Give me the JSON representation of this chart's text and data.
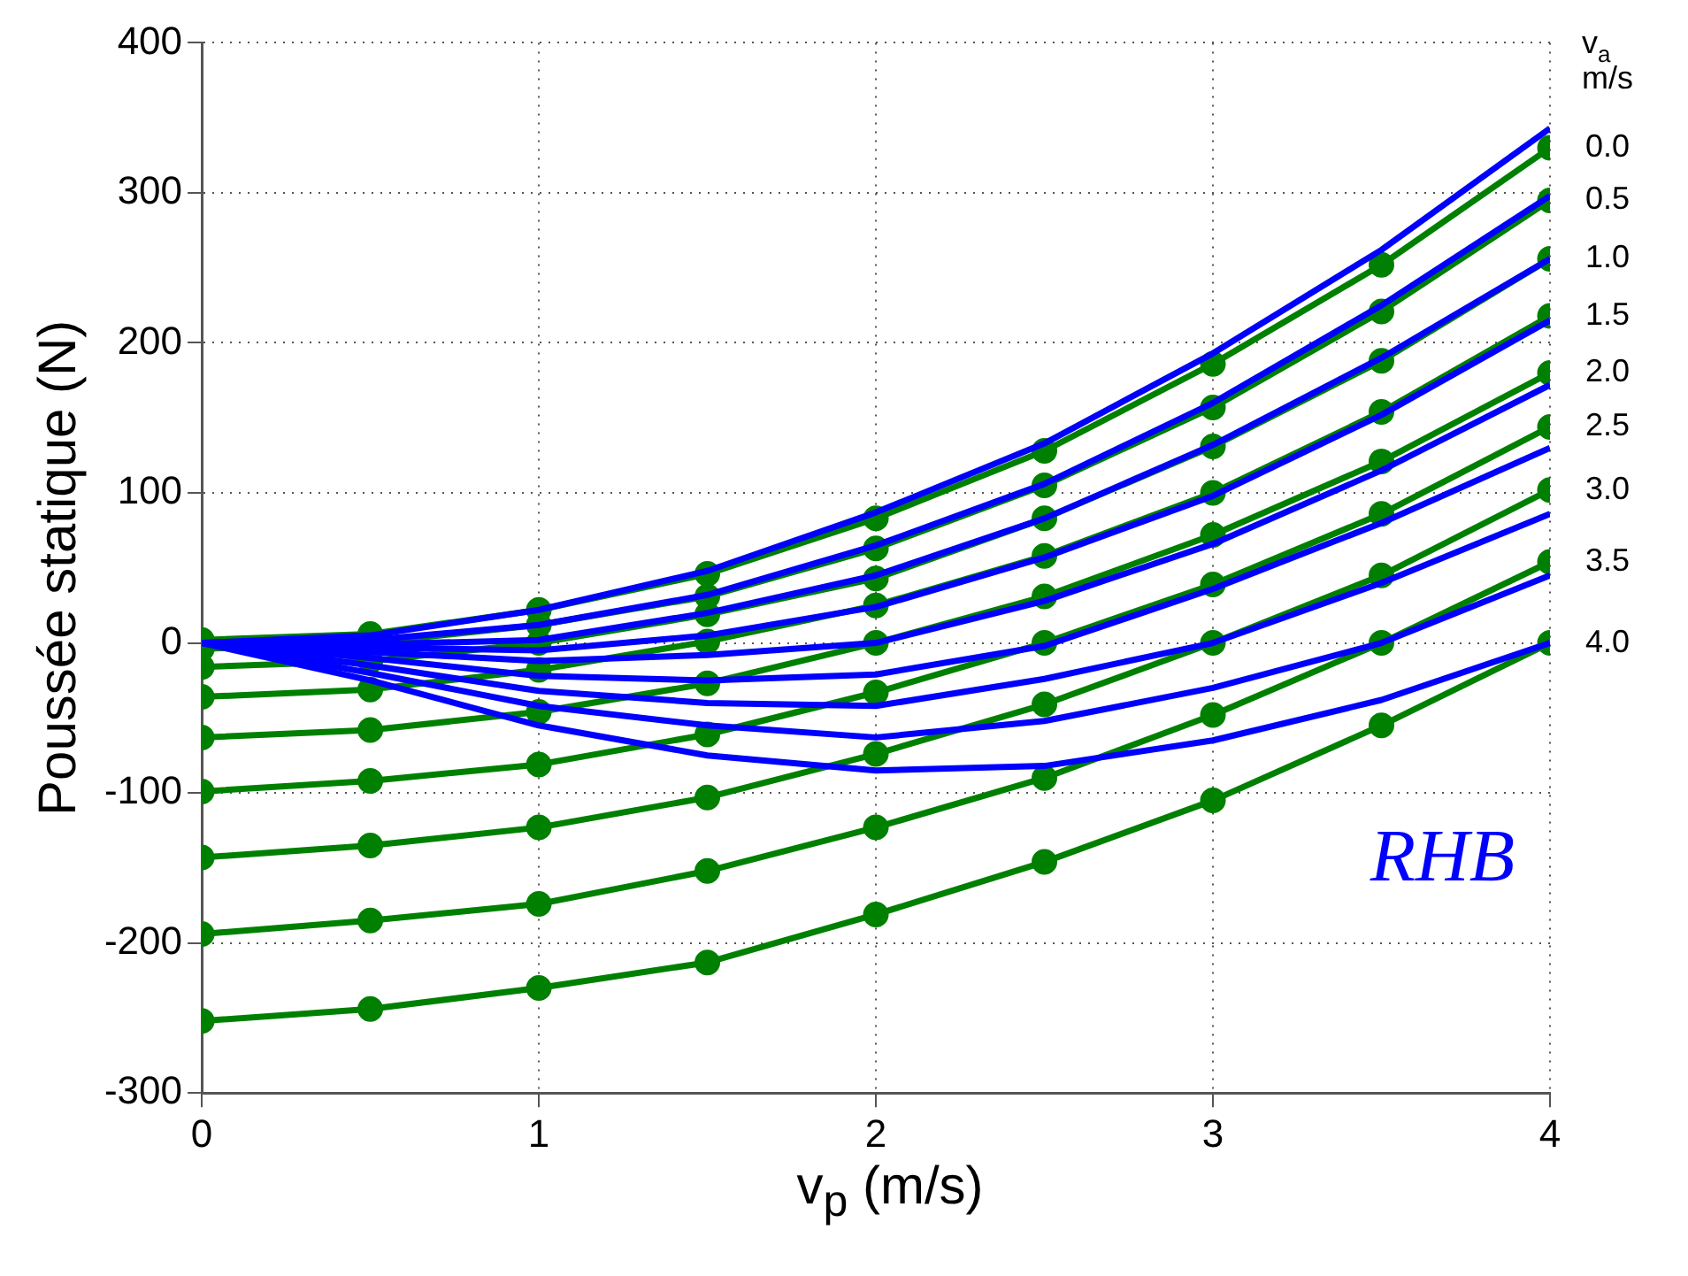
{
  "chart_data": {
    "type": "line",
    "ylabel": "Poussée statique (N)",
    "xlabel": "v$_{p}$ (m/s)",
    "x": [
      0,
      0.5,
      1,
      1.5,
      2,
      2.5,
      3,
      3.5,
      4
    ],
    "xlim": [
      0,
      4
    ],
    "xticks": [
      0,
      1,
      2,
      3,
      4
    ],
    "ylim": [
      -300,
      400
    ],
    "yticks": [
      -300,
      -200,
      -100,
      0,
      100,
      200,
      300,
      400
    ],
    "grid": true,
    "legend": false,
    "series": [
      {
        "color": "#0000ff",
        "marker": "none",
        "values": [
          0,
          5,
          22,
          48,
          87,
          133,
          193,
          262,
          343
        ]
      },
      {
        "color": "#0000ff",
        "marker": "none",
        "values": [
          0,
          2,
          12,
          32,
          65,
          106,
          160,
          225,
          298
        ]
      },
      {
        "color": "#0000ff",
        "marker": "none",
        "values": [
          0,
          -1,
          2,
          20,
          45,
          83,
          132,
          190,
          256
        ]
      },
      {
        "color": "#0000ff",
        "marker": "none",
        "values": [
          0,
          -3,
          -5,
          5,
          24,
          57,
          98,
          152,
          215
        ]
      },
      {
        "color": "#0000ff",
        "marker": "none",
        "values": [
          0,
          -6,
          -12,
          -8,
          0,
          28,
          66,
          115,
          172
        ]
      },
      {
        "color": "#0000ff",
        "marker": "none",
        "values": [
          0,
          -10,
          -22,
          -25,
          -21,
          -2,
          36,
          80,
          130
        ]
      },
      {
        "color": "#0000ff",
        "marker": "none",
        "values": [
          0,
          -15,
          -32,
          -40,
          -42,
          -24,
          0,
          40,
          86
        ]
      },
      {
        "color": "#0000ff",
        "marker": "none",
        "values": [
          0,
          -20,
          -42,
          -55,
          -63,
          -52,
          -30,
          0,
          45
        ]
      },
      {
        "color": "#0000ff",
        "marker": "none",
        "values": [
          0,
          -25,
          -55,
          -75,
          -85,
          -82,
          -65,
          -38,
          0
        ]
      },
      {
        "name": "0.0",
        "color": "#008000",
        "marker": "circle",
        "values": [
          2,
          6,
          22,
          46,
          83,
          128,
          186,
          252,
          330
        ]
      },
      {
        "name": "0.5",
        "color": "#008000",
        "marker": "circle",
        "values": [
          -4,
          0,
          12,
          31,
          63,
          105,
          157,
          221,
          295
        ]
      },
      {
        "name": "1.0",
        "color": "#008000",
        "marker": "circle",
        "values": [
          -16,
          -12,
          0,
          19,
          43,
          83,
          131,
          188,
          256
        ]
      },
      {
        "name": "1.5",
        "color": "#008000",
        "marker": "circle",
        "values": [
          -36,
          -31,
          -18,
          1,
          25,
          58,
          100,
          154,
          218
        ]
      },
      {
        "name": "2.0",
        "color": "#008000",
        "marker": "circle",
        "values": [
          -63,
          -58,
          -46,
          -27,
          0,
          31,
          72,
          121,
          180
        ]
      },
      {
        "name": "2.5",
        "color": "#008000",
        "marker": "circle",
        "values": [
          -99,
          -92,
          -81,
          -61,
          -33,
          0,
          39,
          86,
          144
        ]
      },
      {
        "name": "3.0",
        "color": "#008000",
        "marker": "circle",
        "values": [
          -143,
          -135,
          -123,
          -103,
          -74,
          -41,
          0,
          45,
          102
        ]
      },
      {
        "name": "3.5",
        "color": "#008000",
        "marker": "circle",
        "values": [
          -194,
          -185,
          -174,
          -152,
          -123,
          -90,
          -48,
          0,
          54
        ]
      },
      {
        "name": "4.0",
        "color": "#008000",
        "marker": "circle",
        "values": [
          -252,
          -244,
          -230,
          -213,
          -181,
          -146,
          -105,
          -55,
          0
        ]
      }
    ],
    "legend_title": "v$_{a}$ m/s",
    "annotations": [
      "RHB"
    ]
  }
}
